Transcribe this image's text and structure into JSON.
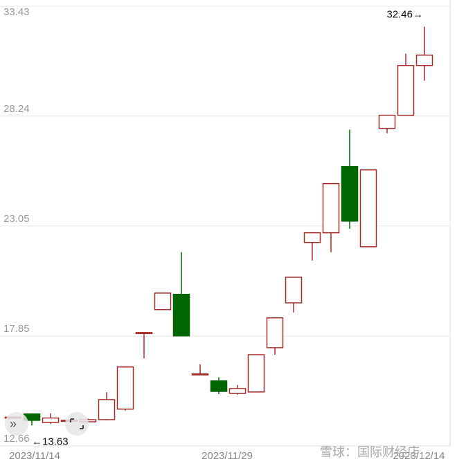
{
  "chart_data": {
    "type": "candlestick",
    "categories": [
      "2023/11/14",
      null,
      null,
      null,
      null,
      null,
      null,
      null,
      null,
      null,
      null,
      "2023/11/29",
      null,
      null,
      null,
      null,
      null,
      null,
      null,
      null,
      null,
      null,
      "2023/12/14"
    ],
    "open": [
      13.98,
      14.17,
      13.77,
      13.83,
      13.8,
      13.9,
      14.4,
      17.98,
      19.1,
      19.82,
      16.05,
      15.73,
      15.14,
      15.21,
      17.3,
      19.42,
      22.27,
      22.73,
      25.86,
      22.07,
      27.66,
      28.28,
      30.63
    ],
    "high": [
      14.05,
      14.2,
      14.2,
      13.9,
      13.95,
      15.2,
      16.39,
      18.02,
      19.88,
      21.81,
      16.52,
      15.9,
      15.54,
      16.97,
      18.71,
      20.63,
      22.73,
      25.05,
      27.6,
      25.7,
      28.28,
      31.19,
      32.46
    ],
    "low": [
      13.95,
      13.63,
      13.7,
      13.8,
      13.78,
      13.87,
      14.33,
      16.8,
      19.1,
      17.86,
      16.05,
      15.11,
      15.08,
      15.21,
      16.97,
      18.97,
      21.42,
      21.81,
      22.92,
      22.07,
      27.43,
      28.28,
      29.91
    ],
    "close": [
      14.02,
      13.87,
      13.98,
      13.87,
      13.9,
      14.85,
      16.39,
      18.02,
      19.88,
      17.86,
      16.06,
      15.24,
      15.37,
      16.97,
      18.71,
      20.63,
      22.73,
      25.05,
      23.28,
      25.7,
      28.28,
      30.63,
      31.12
    ],
    "up_color": "#a52a2a",
    "down_color": "#006400",
    "ylim": [
      12.66,
      33.43
    ],
    "yticks": [
      12.66,
      17.85,
      23.05,
      28.24,
      33.43
    ],
    "grid": true,
    "annotations": [
      "32.46→",
      "←13.63"
    ],
    "watermark": "雪球：国际财经店"
  }
}
